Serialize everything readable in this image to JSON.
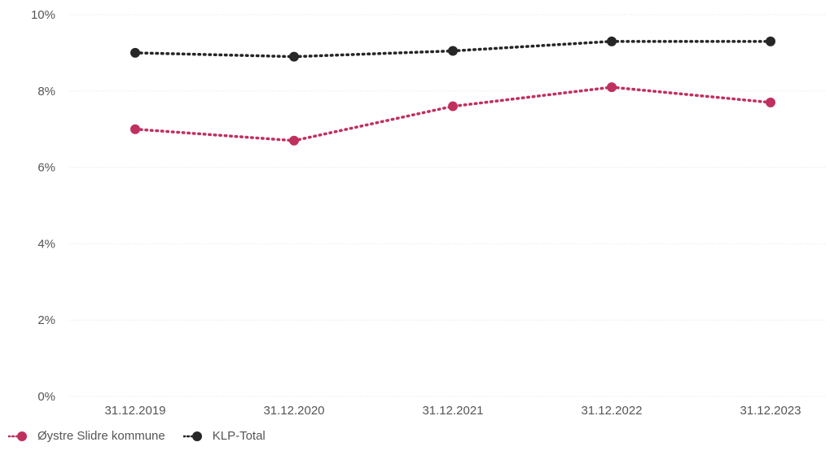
{
  "chart_data": {
    "type": "line",
    "categories": [
      "31.12.2019",
      "31.12.2020",
      "31.12.2021",
      "31.12.2022",
      "31.12.2023"
    ],
    "y_ticks": [
      "0%",
      "2%",
      "4%",
      "6%",
      "8%",
      "10%"
    ],
    "ylim": [
      0,
      10
    ],
    "grid": true,
    "legend_position": "bottom-left",
    "series": [
      {
        "name": "Øystre Slidre kommune",
        "color": "#c0305f",
        "values": [
          7.0,
          6.7,
          7.6,
          8.1,
          7.7
        ]
      },
      {
        "name": "KLP-Total",
        "color": "#262626",
        "values": [
          9.0,
          8.9,
          9.05,
          9.3,
          9.3
        ]
      }
    ]
  }
}
